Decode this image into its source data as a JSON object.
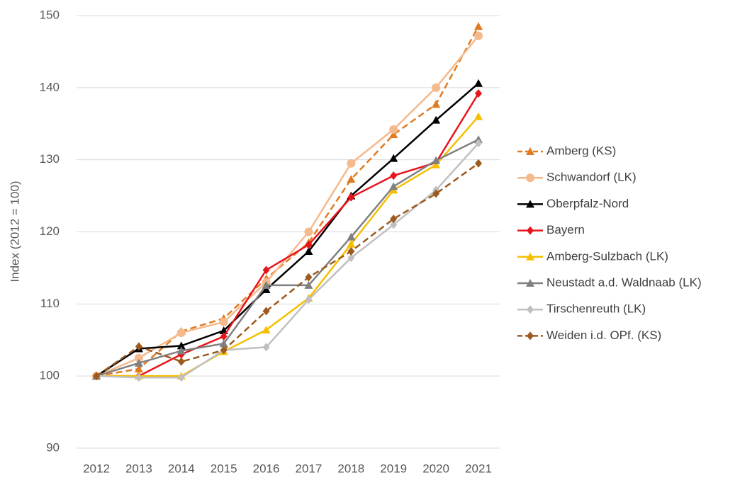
{
  "chart_data": {
    "type": "line",
    "y_label": "Index (2012 = 100)",
    "categories": [
      "2012",
      "2013",
      "2014",
      "2015",
      "2016",
      "2017",
      "2018",
      "2019",
      "2020",
      "2021"
    ],
    "ylim": [
      90,
      150
    ],
    "yticks": [
      90,
      100,
      110,
      120,
      130,
      140,
      150
    ],
    "grid": true,
    "legend": "right",
    "series": [
      {
        "name": "Amberg (KS)",
        "color": "#e07b20",
        "marker": "triangle",
        "dashed": true,
        "values": [
          100,
          101,
          106.2,
          108,
          113.5,
          118.5,
          127.3,
          133.5,
          137.7,
          148.5
        ]
      },
      {
        "name": "Schwandorf  (LK)",
        "color": "#f4b98c",
        "marker": "circle",
        "dashed": false,
        "values": [
          100,
          102.5,
          106,
          107.5,
          113,
          120,
          129.5,
          134.2,
          140,
          147.2
        ]
      },
      {
        "name": "Oberpfalz-Nord",
        "color": "#000000",
        "marker": "triangle",
        "dashed": false,
        "values": [
          100,
          103.8,
          104.2,
          106.3,
          112,
          117.3,
          125,
          130.2,
          135.5,
          140.6
        ]
      },
      {
        "name": "Bayern",
        "color": "#e8141c",
        "marker": "diamond",
        "dashed": false,
        "values": [
          100,
          100,
          103,
          105.5,
          114.7,
          118.2,
          124.8,
          127.8,
          129.6,
          139.2
        ]
      },
      {
        "name": "Amberg-Sulzbach (LK)",
        "color": "#f5bf00",
        "marker": "triangle",
        "dashed": false,
        "values": [
          100,
          100,
          100,
          103.4,
          106.4,
          110.8,
          118.3,
          125.8,
          129.3,
          136
        ]
      },
      {
        "name": "Neustadt a.d. Waldnaab  (LK)",
        "color": "#808080",
        "marker": "triangle",
        "dashed": false,
        "values": [
          100,
          101.8,
          103.5,
          104.5,
          112.6,
          112.6,
          119.3,
          126.3,
          129.9,
          132.8
        ]
      },
      {
        "name": "Tirschenreuth  (LK)",
        "color": "#c0c0c0",
        "marker": "diamond",
        "dashed": false,
        "values": [
          100,
          99.8,
          99.8,
          103.6,
          104,
          110.6,
          116.4,
          121,
          125.8,
          132.3
        ]
      },
      {
        "name": "Weiden i.d. OPf. (KS)",
        "color": "#9c5a1e",
        "marker": "diamond",
        "dashed": true,
        "values": [
          100,
          104.1,
          102,
          103.6,
          109,
          113.7,
          117.3,
          121.8,
          125.3,
          129.5
        ]
      }
    ]
  }
}
